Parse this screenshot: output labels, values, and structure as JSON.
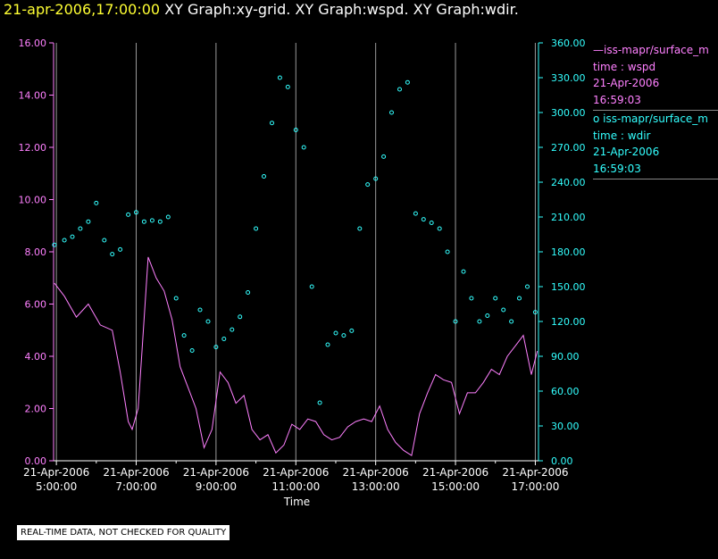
{
  "header": {
    "timestamp": "21-apr-2006,17:00:00",
    "graphs": "XY Graph:xy-grid.  XY Graph:wspd.  XY Graph:wdir."
  },
  "colors": {
    "wspd": "#ff80ff",
    "wdir": "#33ffff",
    "grid": "#9a9a9a",
    "axis_text_left": "#ff80ff",
    "axis_text_right": "#33ffff"
  },
  "legend": {
    "series1": {
      "name": "—iss-mapr/surface_m",
      "line1": "time : wspd",
      "line2": "21-Apr-2006",
      "line3": "16:59:03"
    },
    "series2": {
      "name": "o  iss-mapr/surface_m",
      "line1": "time : wdir",
      "line2": "21-Apr-2006",
      "line3": "16:59:03"
    }
  },
  "footer_note": "REAL-TIME DATA, NOT CHECKED FOR QUALITY",
  "chart_data": {
    "type": "line",
    "title": "21-apr-2006,17:00:00  XY Graph:xy-grid.  XY Graph:wspd.  XY Graph:wdir.",
    "xlabel": "Time",
    "x_range_hours": [
      4.93,
      17.08
    ],
    "x_ticks": [
      {
        "hour": 5,
        "date": "21-Apr-2006",
        "time": "5:00:00"
      },
      {
        "hour": 7,
        "date": "21-Apr-2006",
        "time": "7:00:00"
      },
      {
        "hour": 9,
        "date": "21-Apr-2006",
        "time": "9:00:00"
      },
      {
        "hour": 11,
        "date": "21-Apr-2006",
        "time": "11:00:00"
      },
      {
        "hour": 13,
        "date": "21-Apr-2006",
        "time": "13:00:00"
      },
      {
        "hour": 15,
        "date": "21-Apr-2006",
        "time": "15:00:00"
      },
      {
        "hour": 17,
        "date": "21-Apr-2006",
        "time": "17:00:00"
      }
    ],
    "left_axis": {
      "series": "wspd",
      "ylim": [
        0,
        16
      ],
      "ticks": [
        "0.00",
        "2.00",
        "4.00",
        "6.00",
        "8.00",
        "10.00",
        "12.00",
        "14.00",
        "16.00"
      ]
    },
    "right_axis": {
      "series": "wdir",
      "ylim": [
        0,
        360
      ],
      "ticks": [
        "0.00",
        "30.00",
        "60.00",
        "90.00",
        "120.00",
        "150.00",
        "180.00",
        "210.00",
        "240.00",
        "270.00",
        "300.00",
        "330.00",
        "360.00"
      ]
    },
    "series": [
      {
        "name": "wspd",
        "style": "line",
        "axis": "left",
        "x": [
          4.95,
          5.2,
          5.5,
          5.8,
          6.1,
          6.4,
          6.6,
          6.8,
          6.9,
          7.05,
          7.15,
          7.3,
          7.5,
          7.7,
          7.9,
          8.1,
          8.3,
          8.5,
          8.7,
          8.9,
          9.1,
          9.3,
          9.5,
          9.7,
          9.9,
          10.1,
          10.3,
          10.5,
          10.7,
          10.9,
          11.1,
          11.3,
          11.5,
          11.7,
          11.9,
          12.1,
          12.3,
          12.5,
          12.7,
          12.9,
          13.1,
          13.3,
          13.5,
          13.7,
          13.9,
          14.1,
          14.3,
          14.5,
          14.7,
          14.9,
          15.1,
          15.3,
          15.5,
          15.7,
          15.9,
          16.1,
          16.3,
          16.5,
          16.7,
          16.9,
          17.05
        ],
        "values": [
          6.8,
          6.3,
          5.5,
          6.0,
          5.2,
          5.0,
          3.4,
          1.5,
          1.2,
          2.0,
          4.3,
          7.8,
          7.0,
          6.5,
          5.4,
          3.6,
          2.8,
          2.0,
          0.5,
          1.2,
          3.4,
          3.0,
          2.2,
          2.5,
          1.2,
          0.8,
          1.0,
          0.3,
          0.6,
          1.4,
          1.2,
          1.6,
          1.5,
          1.0,
          0.8,
          0.9,
          1.3,
          1.5,
          1.6,
          1.5,
          2.1,
          1.2,
          0.7,
          0.4,
          0.2,
          1.8,
          2.6,
          3.3,
          3.1,
          3.0,
          1.8,
          2.6,
          2.6,
          3.0,
          3.5,
          3.3,
          4.0,
          4.4,
          4.8,
          3.3,
          4.2
        ]
      },
      {
        "name": "wdir",
        "style": "markers",
        "axis": "right",
        "x": [
          4.95,
          5.2,
          5.4,
          5.6,
          5.8,
          6.0,
          6.2,
          6.4,
          6.6,
          6.8,
          7.0,
          7.2,
          7.4,
          7.6,
          7.8,
          8.0,
          8.2,
          8.4,
          8.6,
          8.8,
          9.0,
          9.2,
          9.4,
          9.6,
          9.8,
          10.0,
          10.2,
          10.4,
          10.6,
          10.8,
          11.0,
          11.2,
          11.4,
          11.6,
          11.8,
          12.0,
          12.2,
          12.4,
          12.6,
          12.8,
          13.0,
          13.2,
          13.4,
          13.6,
          13.8,
          14.0,
          14.2,
          14.4,
          14.6,
          14.8,
          15.0,
          15.2,
          15.4,
          15.6,
          15.8,
          16.0,
          16.2,
          16.4,
          16.6,
          16.8,
          17.0
        ],
        "values": [
          186,
          190,
          193,
          200,
          206,
          222,
          190,
          178,
          182,
          212,
          214,
          206,
          207,
          206,
          210,
          140,
          108,
          95,
          130,
          120,
          98,
          105,
          113,
          124,
          145,
          200,
          245,
          291,
          330,
          322,
          285,
          270,
          150,
          50,
          100,
          110,
          108,
          112,
          200,
          238,
          243,
          262,
          300,
          320,
          326,
          213,
          208,
          205,
          200,
          180,
          120,
          163,
          140,
          120,
          125,
          140,
          130,
          120,
          140,
          150,
          128
        ]
      }
    ]
  }
}
